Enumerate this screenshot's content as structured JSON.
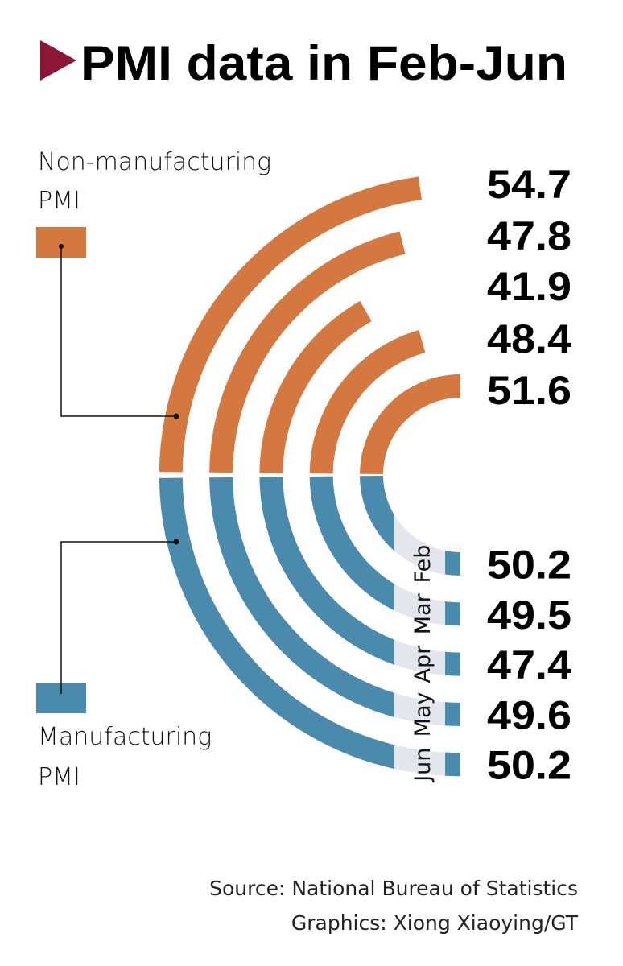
{
  "chart_data": {
    "type": "radial-bar",
    "title": "PMI data in Feb-Jun",
    "categories": [
      "Feb",
      "Mar",
      "Apr",
      "May",
      "Jun"
    ],
    "series": [
      {
        "name": "Non-manufacturing PMI",
        "values": [
          51.6,
          48.4,
          41.9,
          47.8,
          54.7
        ],
        "color": "#d5783f"
      },
      {
        "name": "Manufacturing PMI",
        "values": [
          50.2,
          49.5,
          47.4,
          49.6,
          50.2
        ],
        "color": "#4a8aad"
      }
    ],
    "legend": {
      "non_manufacturing": [
        "Non-manufacturing",
        "PMI"
      ],
      "manufacturing": [
        "Manufacturing",
        "PMI"
      ]
    },
    "source": "Source: National Bureau of Statistics",
    "credit": "Graphics: Xiong Xiaoying/GT"
  },
  "colors": {
    "accent": "#8c1538",
    "connector": "#e4e6ee"
  }
}
